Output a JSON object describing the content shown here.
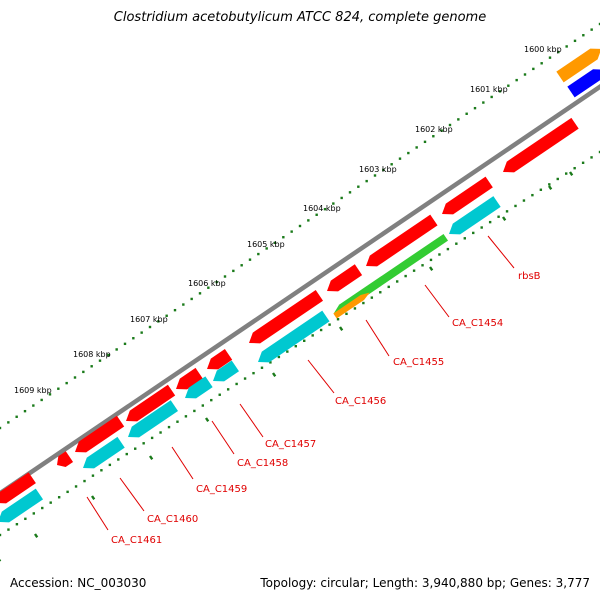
{
  "title": "Clostridium acetobutylicum ATCC 824, complete genome",
  "accession": "Accession: NC_003030",
  "stats": "Topology: circular; Length: 3,940,880 bp; Genes: 3,777",
  "colors": {
    "backbone": "#808080",
    "forward_cds": "#ff0000",
    "reverse_cds": "#00c8d0",
    "rrna": "#33cc33",
    "trna": "#ff9900",
    "other": "#0000ff",
    "ticks": "#1a7a1a",
    "labels": "#e00000"
  },
  "ticks": [
    {
      "label": "1600 kbp"
    },
    {
      "label": "1601 kbp"
    },
    {
      "label": "1602 kbp"
    },
    {
      "label": "1603 kbp"
    },
    {
      "label": "1604 kbp"
    },
    {
      "label": "1605 kbp"
    },
    {
      "label": "1606 kbp"
    },
    {
      "label": "1607 kbp"
    },
    {
      "label": "1608 kbp"
    },
    {
      "label": "1609 kbp"
    }
  ],
  "gene_labels": [
    {
      "name": "rbsB"
    },
    {
      "name": "CA_C1454"
    },
    {
      "name": "CA_C1455"
    },
    {
      "name": "CA_C1456"
    },
    {
      "name": "CA_C1457"
    },
    {
      "name": "CA_C1458"
    },
    {
      "name": "CA_C1459"
    },
    {
      "name": "CA_C1460"
    },
    {
      "name": "CA_C1461"
    }
  ]
}
